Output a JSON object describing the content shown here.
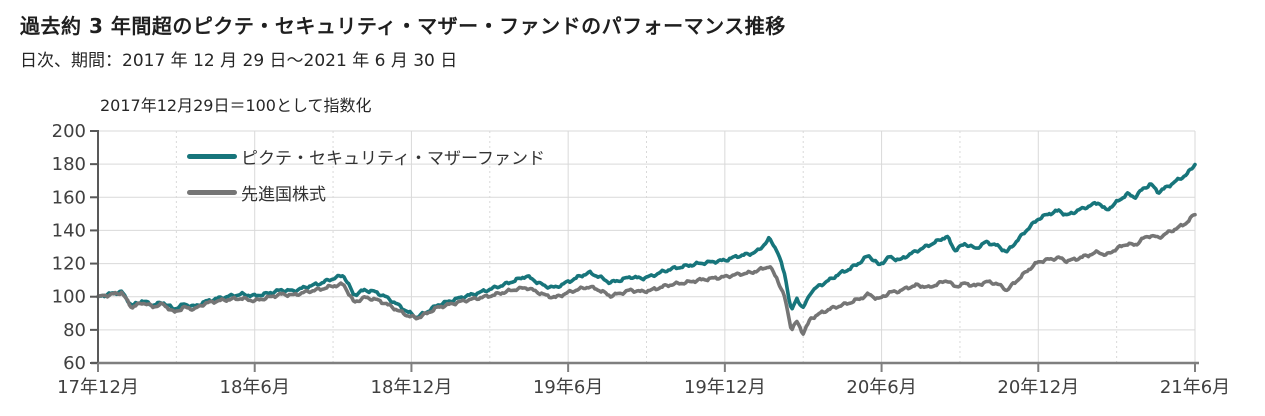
{
  "header": {
    "title": "過去約 3 年間超のピクテ・セキュリティ・マザー・ファンドのパフォーマンス推移",
    "subtitle": "日次、期間：2017 年 12 月 29 日～2021 年 6 月 30 日"
  },
  "chart": {
    "note": "2017年12月29日＝100として指数化"
  },
  "colors": {
    "fund_teal": "#17757b",
    "benchmark_gray": "#757575",
    "grid": "#d9d9d9",
    "axis_left": "#595959",
    "axis_bottom": "#7f7f7f",
    "tick_text": "#404040"
  },
  "chart_data": {
    "type": "line",
    "title": "過去約 3 年間超のピクテ・セキュリティ・マザー・ファンドのパフォーマンス推移",
    "subtitle": "日次、期間：2017 年 12 月 29 日～2021 年 6 月 30 日",
    "note": "2017年12月29日＝100として指数化",
    "xlabel": "",
    "ylabel": "",
    "ylim": [
      60,
      200
    ],
    "yticks": [
      60,
      80,
      100,
      120,
      140,
      160,
      180,
      200
    ],
    "grid": true,
    "legend_position": "top-left-inside",
    "x_unit": "months since 2017-12-29",
    "x_range_months": [
      0,
      42
    ],
    "x_major_ticks_months": [
      0,
      6,
      12,
      18,
      24,
      30,
      36,
      42
    ],
    "x_minor_ticks_months": [
      3,
      9,
      15,
      21,
      27,
      33,
      39
    ],
    "x_tick_labels": [
      "17年12月",
      "18年6月",
      "18年12月",
      "19年6月",
      "19年12月",
      "20年6月",
      "20年12月",
      "21年6月"
    ],
    "series": [
      {
        "name": "ピクテ・セキュリティ・マザーファンド",
        "color": "#17757b",
        "points": [
          [
            0,
            100
          ],
          [
            0.4,
            101.5
          ],
          [
            0.9,
            103
          ],
          [
            1.3,
            94.5
          ],
          [
            1.7,
            97.5
          ],
          [
            2.1,
            95
          ],
          [
            2.5,
            96.5
          ],
          [
            2.9,
            92.5
          ],
          [
            3.3,
            95.5
          ],
          [
            3.7,
            94
          ],
          [
            4.1,
            97
          ],
          [
            4.6,
            99
          ],
          [
            5.1,
            100.5
          ],
          [
            5.5,
            101.5
          ],
          [
            6,
            100.5
          ],
          [
            6.5,
            102
          ],
          [
            7,
            104
          ],
          [
            7.5,
            103.5
          ],
          [
            8,
            106
          ],
          [
            8.5,
            108
          ],
          [
            9,
            111
          ],
          [
            9.4,
            113
          ],
          [
            9.8,
            101
          ],
          [
            10.2,
            104
          ],
          [
            10.6,
            103
          ],
          [
            11,
            100
          ],
          [
            11.4,
            96
          ],
          [
            11.8,
            91.5
          ],
          [
            12.2,
            87.5
          ],
          [
            12.6,
            91
          ],
          [
            13,
            95
          ],
          [
            13.5,
            97.5
          ],
          [
            14,
            100
          ],
          [
            14.5,
            102
          ],
          [
            15,
            104.5
          ],
          [
            15.5,
            107
          ],
          [
            16,
            110
          ],
          [
            16.4,
            112.5
          ],
          [
            16.8,
            109
          ],
          [
            17.1,
            106.5
          ],
          [
            17.5,
            105.5
          ],
          [
            18,
            109
          ],
          [
            18.4,
            112
          ],
          [
            18.8,
            114.5
          ],
          [
            19.2,
            112
          ],
          [
            19.6,
            108.5
          ],
          [
            20,
            110
          ],
          [
            20.4,
            112
          ],
          [
            20.8,
            111
          ],
          [
            21.2,
            112.5
          ],
          [
            21.6,
            115
          ],
          [
            22,
            117
          ],
          [
            22.5,
            118.5
          ],
          [
            23,
            120
          ],
          [
            23.5,
            121
          ],
          [
            24,
            122
          ],
          [
            24.5,
            124.5
          ],
          [
            25,
            126
          ],
          [
            25.3,
            128
          ],
          [
            25.7,
            135
          ],
          [
            26,
            128
          ],
          [
            26.3,
            113
          ],
          [
            26.55,
            91
          ],
          [
            26.75,
            99
          ],
          [
            27,
            93
          ],
          [
            27.3,
            103
          ],
          [
            27.6,
            106.5
          ],
          [
            28,
            110
          ],
          [
            28.4,
            114
          ],
          [
            28.8,
            117
          ],
          [
            29.2,
            121
          ],
          [
            29.5,
            125
          ],
          [
            29.9,
            119
          ],
          [
            30.3,
            124
          ],
          [
            30.7,
            122
          ],
          [
            31,
            125
          ],
          [
            31.4,
            128
          ],
          [
            31.8,
            131
          ],
          [
            32.2,
            134
          ],
          [
            32.5,
            136.5
          ],
          [
            32.8,
            128
          ],
          [
            33.2,
            132
          ],
          [
            33.6,
            129
          ],
          [
            34,
            133
          ],
          [
            34.4,
            131
          ],
          [
            34.8,
            127
          ],
          [
            35.2,
            134
          ],
          [
            35.6,
            141
          ],
          [
            36,
            147
          ],
          [
            36.4,
            150
          ],
          [
            36.8,
            152
          ],
          [
            37.1,
            149
          ],
          [
            37.5,
            152
          ],
          [
            38,
            155
          ],
          [
            38.3,
            157
          ],
          [
            38.6,
            152
          ],
          [
            39,
            157
          ],
          [
            39.4,
            162
          ],
          [
            39.7,
            160
          ],
          [
            40,
            165
          ],
          [
            40.3,
            168
          ],
          [
            40.6,
            163
          ],
          [
            41,
            167
          ],
          [
            41.4,
            171
          ],
          [
            41.7,
            174
          ],
          [
            42,
            180
          ]
        ]
      },
      {
        "name": "先進国株式",
        "color": "#757575",
        "points": [
          [
            0,
            100
          ],
          [
            0.4,
            101
          ],
          [
            0.9,
            102.5
          ],
          [
            1.3,
            93.5
          ],
          [
            1.7,
            96.5
          ],
          [
            2.1,
            94
          ],
          [
            2.5,
            95.5
          ],
          [
            2.9,
            90.5
          ],
          [
            3.3,
            93.5
          ],
          [
            3.7,
            92.5
          ],
          [
            4.1,
            96
          ],
          [
            4.6,
            97.5
          ],
          [
            5.1,
            98.5
          ],
          [
            5.5,
            99
          ],
          [
            6,
            97.5
          ],
          [
            6.5,
            99.5
          ],
          [
            7,
            101.5
          ],
          [
            7.5,
            101
          ],
          [
            8,
            103
          ],
          [
            8.5,
            104.5
          ],
          [
            9,
            106.5
          ],
          [
            9.4,
            107.5
          ],
          [
            9.8,
            96.5
          ],
          [
            10.2,
            99.5
          ],
          [
            10.6,
            98.5
          ],
          [
            11,
            96
          ],
          [
            11.4,
            92.5
          ],
          [
            11.8,
            89
          ],
          [
            12.2,
            87
          ],
          [
            12.6,
            90
          ],
          [
            13,
            93.5
          ],
          [
            13.5,
            95.5
          ],
          [
            14,
            97.5
          ],
          [
            14.5,
            99
          ],
          [
            15,
            100.5
          ],
          [
            15.5,
            102.5
          ],
          [
            16,
            104.5
          ],
          [
            16.4,
            105.5
          ],
          [
            16.8,
            103
          ],
          [
            17.1,
            101
          ],
          [
            17.5,
            99.5
          ],
          [
            18,
            102.5
          ],
          [
            18.4,
            104.5
          ],
          [
            18.8,
            106
          ],
          [
            19.2,
            104
          ],
          [
            19.6,
            100.5
          ],
          [
            20,
            102
          ],
          [
            20.4,
            104
          ],
          [
            20.8,
            103
          ],
          [
            21.2,
            104
          ],
          [
            21.6,
            106
          ],
          [
            22,
            107.5
          ],
          [
            22.5,
            108.5
          ],
          [
            23,
            110
          ],
          [
            23.5,
            111
          ],
          [
            24,
            112
          ],
          [
            24.5,
            113.5
          ],
          [
            25,
            114.5
          ],
          [
            25.3,
            116
          ],
          [
            25.7,
            118.5
          ],
          [
            26,
            111
          ],
          [
            26.3,
            99
          ],
          [
            26.55,
            80
          ],
          [
            26.75,
            85
          ],
          [
            27,
            78
          ],
          [
            27.3,
            87
          ],
          [
            27.6,
            89.5
          ],
          [
            28,
            92.5
          ],
          [
            28.4,
            94.5
          ],
          [
            28.8,
            96.5
          ],
          [
            29.2,
            99
          ],
          [
            29.5,
            101.5
          ],
          [
            29.9,
            98.5
          ],
          [
            30.3,
            102.5
          ],
          [
            30.7,
            103.5
          ],
          [
            31,
            105.5
          ],
          [
            31.4,
            107
          ],
          [
            31.8,
            105.5
          ],
          [
            32.2,
            108
          ],
          [
            32.5,
            110
          ],
          [
            32.8,
            106
          ],
          [
            33.2,
            108
          ],
          [
            33.6,
            106.5
          ],
          [
            34,
            109
          ],
          [
            34.4,
            108
          ],
          [
            34.8,
            104
          ],
          [
            35.2,
            110
          ],
          [
            35.6,
            116
          ],
          [
            36,
            121
          ],
          [
            36.4,
            122.5
          ],
          [
            36.8,
            123.5
          ],
          [
            37.1,
            121.5
          ],
          [
            37.5,
            123
          ],
          [
            38,
            125.5
          ],
          [
            38.3,
            127
          ],
          [
            38.6,
            125
          ],
          [
            39,
            129
          ],
          [
            39.4,
            132
          ],
          [
            39.7,
            131
          ],
          [
            40,
            135
          ],
          [
            40.3,
            137
          ],
          [
            40.6,
            135.5
          ],
          [
            41,
            139
          ],
          [
            41.4,
            142
          ],
          [
            41.7,
            145
          ],
          [
            42,
            150
          ]
        ]
      }
    ]
  }
}
